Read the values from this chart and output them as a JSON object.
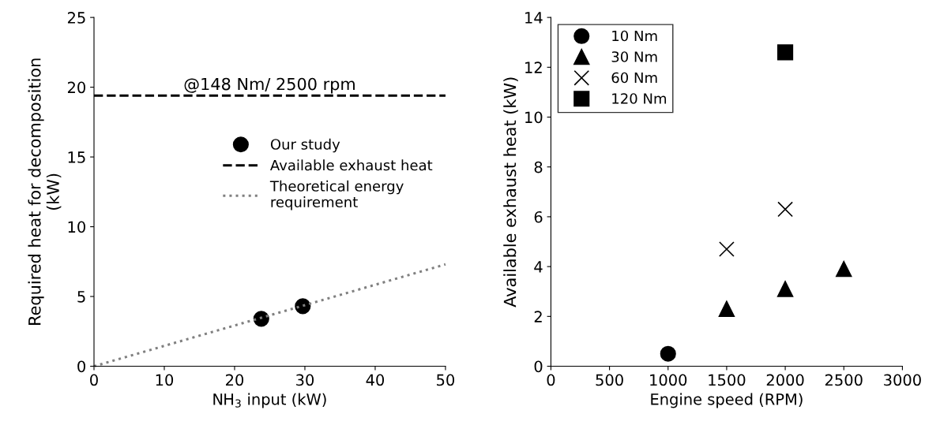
{
  "chart_data": [
    {
      "type": "scatter",
      "xlabel": "NH$_{3}$ input (kW)",
      "ylabel": "Required heat for decomposition\n(kW)",
      "xlim": [
        0,
        50
      ],
      "xticks": [
        0,
        10,
        20,
        30,
        40,
        50
      ],
      "ylim": [
        0,
        25
      ],
      "yticks": [
        0,
        5,
        10,
        15,
        20,
        25
      ],
      "grid": false,
      "legend": "right",
      "annotations": [
        {
          "text": "@148 Nm/ 2500 rpm",
          "x": 25,
          "y": 19.4
        }
      ],
      "series": [
        {
          "name": "Our study",
          "color": "#000000",
          "marker": "circle",
          "x": [
            23.8,
            29.7
          ],
          "values": [
            3.4,
            4.3
          ]
        },
        {
          "name": "Available exhaust heat",
          "type": "line",
          "color": "#000000",
          "marker": "none",
          "line_style": "dashed",
          "x": [
            0,
            50
          ],
          "values": [
            19.4,
            19.4
          ]
        },
        {
          "name": "Theoretical energy\nrequirement",
          "type": "line",
          "color": "#808080",
          "marker": "none",
          "line_style": "dotted",
          "x": [
            0,
            50
          ],
          "values": [
            0,
            7.3
          ]
        }
      ]
    },
    {
      "type": "scatter",
      "xlabel": "Engine speed (RPM)",
      "ylabel": "Available exhaust heat (kW)",
      "xlim": [
        0,
        3000
      ],
      "xticks": [
        0,
        500,
        1000,
        1500,
        2000,
        2500,
        3000
      ],
      "ylim": [
        0,
        14
      ],
      "yticks": [
        0,
        2,
        4,
        6,
        8,
        10,
        12,
        14
      ],
      "grid": false,
      "legend": "top left",
      "series": [
        {
          "name": "10 Nm",
          "color": "#000000",
          "marker": "circle",
          "x": [
            1000
          ],
          "values": [
            0.5
          ]
        },
        {
          "name": "30 Nm",
          "color": "#000000",
          "marker": "triangle",
          "x": [
            1500,
            2000,
            2500
          ],
          "values": [
            2.3,
            3.1,
            3.9
          ]
        },
        {
          "name": "60 Nm",
          "color": "#000000",
          "marker": "cross",
          "x": [
            1500,
            2000
          ],
          "values": [
            4.7,
            6.3
          ]
        },
        {
          "name": "120 Nm",
          "color": "#000000",
          "marker": "square",
          "x": [
            2000
          ],
          "values": [
            12.6
          ]
        }
      ]
    }
  ]
}
